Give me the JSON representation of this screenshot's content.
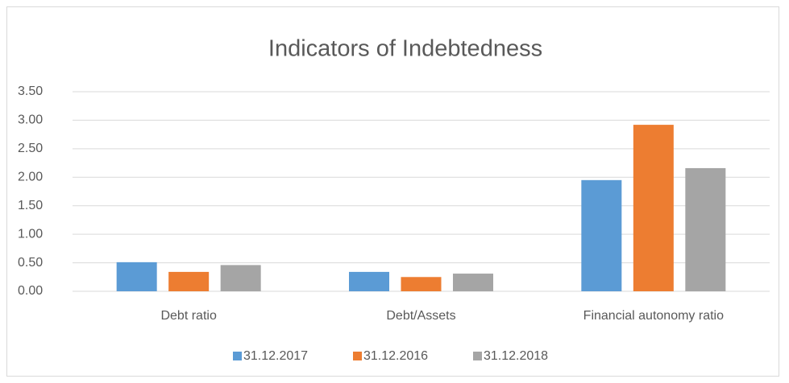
{
  "chart_data": {
    "type": "bar",
    "title": "Indicators of Indebtedness",
    "categories": [
      "Debt ratio",
      "Debt/Assets",
      "Financial autonomy ratio"
    ],
    "series": [
      {
        "name": "31.12.2017",
        "color": "#5b9bd5",
        "values": [
          0.51,
          0.34,
          1.95
        ]
      },
      {
        "name": "31.12.2016",
        "color": "#ed7d31",
        "values": [
          0.34,
          0.25,
          2.92
        ]
      },
      {
        "name": "31.12.2018",
        "color": "#a5a5a5",
        "values": [
          0.46,
          0.31,
          2.16
        ]
      }
    ],
    "ylim": [
      0,
      3.5
    ],
    "yticks": [
      {
        "value": 0,
        "label": "0.00"
      },
      {
        "value": 0.5,
        "label": "0.50"
      },
      {
        "value": 1,
        "label": "1.00"
      },
      {
        "value": 1.5,
        "label": "1.50"
      },
      {
        "value": 2,
        "label": "2.00"
      },
      {
        "value": 2.5,
        "label": "2.50"
      },
      {
        "value": 3,
        "label": "3.00"
      },
      {
        "value": 3.5,
        "label": "3.50"
      }
    ],
    "grid": true,
    "legend": "bottom"
  }
}
